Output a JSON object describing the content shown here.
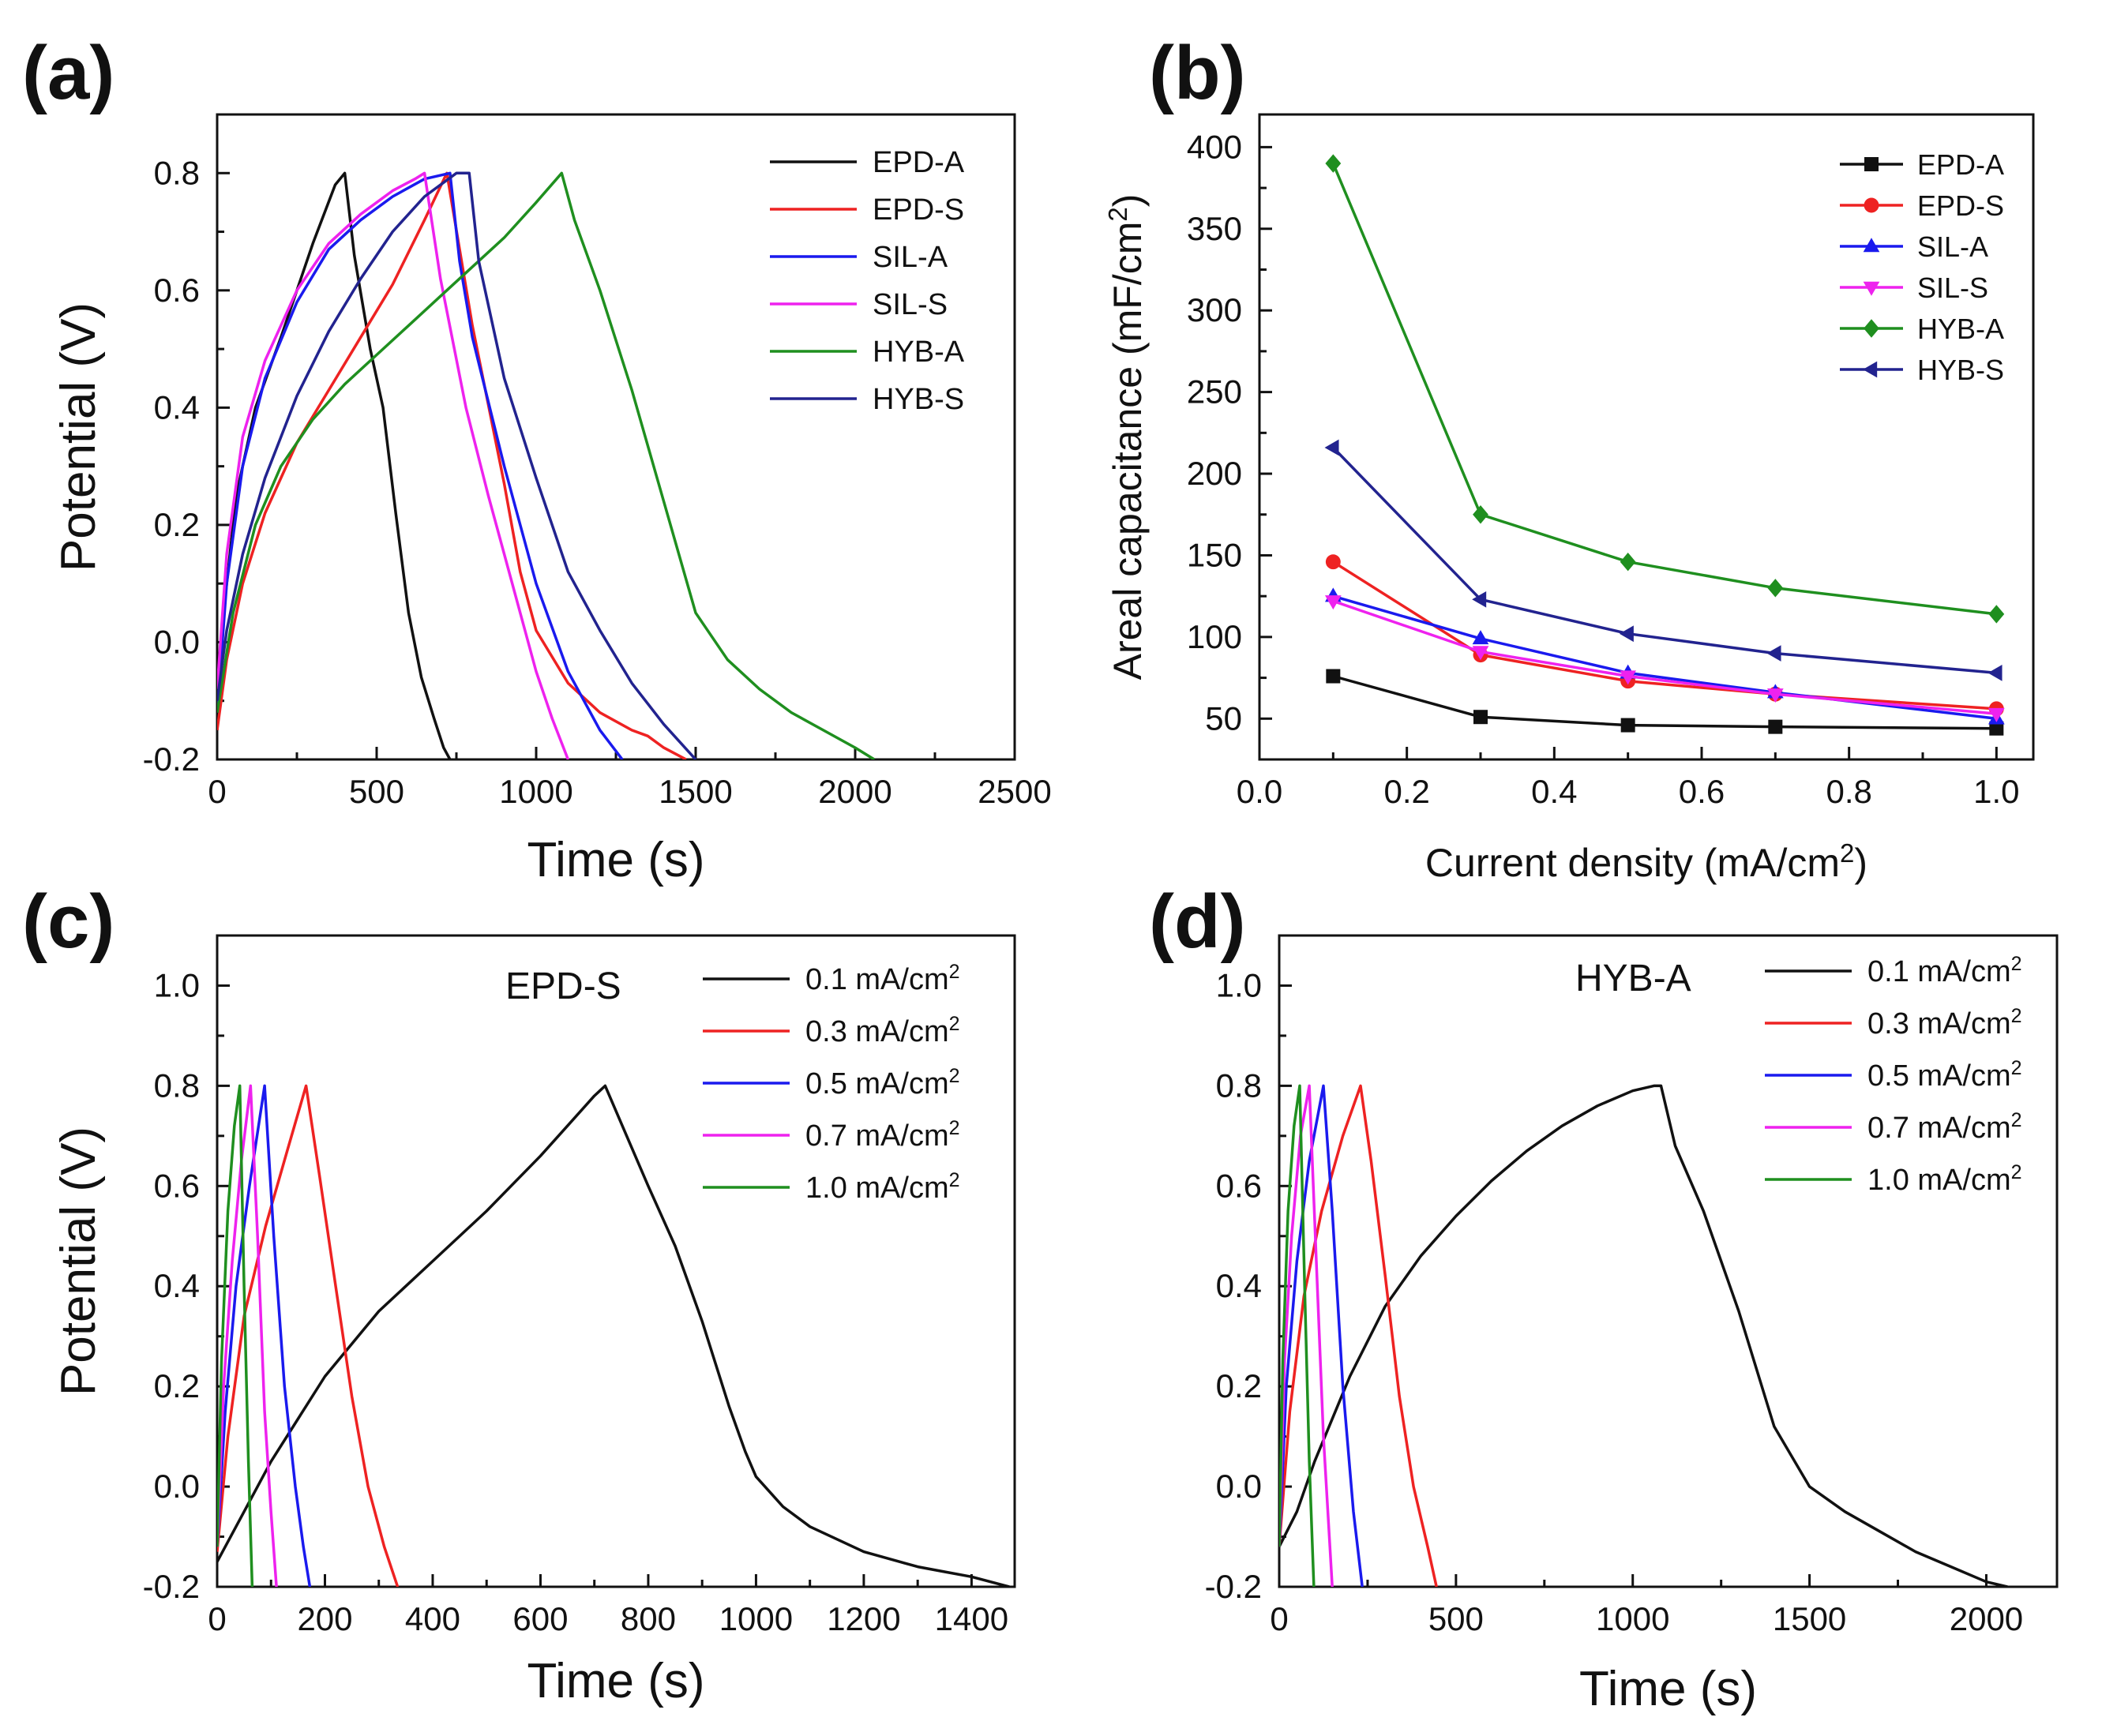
{
  "figure": {
    "panels": [
      "(a)",
      "(b)",
      "(c)",
      "(d)"
    ]
  },
  "colors": {
    "black": "#111111",
    "red": "#ee2222",
    "blue": "#1a1aee",
    "magenta": "#ee22ee",
    "green": "#1f8f1f",
    "navy": "#22238f"
  },
  "chart_data": [
    {
      "panel": "(a)",
      "type": "line",
      "title": "",
      "xlabel": "Time (s)",
      "ylabel": "Potential (V)",
      "xlim": [
        0,
        2500
      ],
      "ylim": [
        -0.2,
        0.9
      ],
      "xticks": [
        0,
        500,
        1000,
        1500,
        2000,
        2500
      ],
      "xtick_labels": [
        "0",
        "500",
        "1000",
        "1500",
        "2000",
        "2500"
      ],
      "yticks": [
        -0.2,
        0.0,
        0.2,
        0.4,
        0.6,
        0.8
      ],
      "ytick_labels": [
        "-0.2",
        "0.0",
        "0.2",
        "0.4",
        "0.6",
        "0.8"
      ],
      "legend": "top-right",
      "series": [
        {
          "name": "EPD-A",
          "color": "#111111",
          "x": [
            0,
            20,
            60,
            120,
            200,
            300,
            370,
            400,
            430,
            480,
            520,
            560,
            600,
            640,
            680,
            710,
            730
          ],
          "y": [
            -0.15,
            0.05,
            0.25,
            0.4,
            0.52,
            0.68,
            0.78,
            0.8,
            0.66,
            0.5,
            0.4,
            0.22,
            0.05,
            -0.06,
            -0.13,
            -0.18,
            -0.2
          ]
        },
        {
          "name": "EPD-S",
          "color": "#ee2222",
          "x": [
            0,
            30,
            80,
            150,
            250,
            350,
            450,
            550,
            650,
            720,
            800,
            900,
            950,
            1000,
            1100,
            1200,
            1300,
            1350,
            1400,
            1470
          ],
          "y": [
            -0.15,
            -0.03,
            0.1,
            0.22,
            0.34,
            0.43,
            0.52,
            0.61,
            0.72,
            0.8,
            0.54,
            0.27,
            0.12,
            0.02,
            -0.07,
            -0.12,
            -0.15,
            -0.16,
            -0.18,
            -0.2
          ]
        },
        {
          "name": "SIL-A",
          "color": "#1a1aee",
          "x": [
            0,
            30,
            80,
            150,
            250,
            350,
            450,
            550,
            650,
            730,
            760,
            800,
            900,
            1000,
            1100,
            1200,
            1270
          ],
          "y": [
            -0.12,
            0.1,
            0.3,
            0.45,
            0.58,
            0.67,
            0.72,
            0.76,
            0.79,
            0.8,
            0.65,
            0.52,
            0.3,
            0.1,
            -0.05,
            -0.15,
            -0.2
          ]
        },
        {
          "name": "SIL-S",
          "color": "#ee22ee",
          "x": [
            0,
            30,
            80,
            150,
            250,
            350,
            450,
            550,
            620,
            650,
            700,
            780,
            850,
            900,
            950,
            1000,
            1050,
            1100
          ],
          "y": [
            -0.08,
            0.15,
            0.35,
            0.48,
            0.6,
            0.68,
            0.73,
            0.77,
            0.79,
            0.8,
            0.62,
            0.4,
            0.25,
            0.15,
            0.05,
            -0.05,
            -0.13,
            -0.2
          ]
        },
        {
          "name": "HYB-A",
          "color": "#1f8f1f",
          "x": [
            0,
            50,
            120,
            200,
            300,
            400,
            500,
            600,
            700,
            800,
            900,
            1000,
            1080,
            1120,
            1200,
            1300,
            1400,
            1500,
            1600,
            1700,
            1800,
            1900,
            2000,
            2060
          ],
          "y": [
            -0.12,
            0.05,
            0.2,
            0.3,
            0.38,
            0.44,
            0.49,
            0.54,
            0.59,
            0.64,
            0.69,
            0.75,
            0.8,
            0.72,
            0.6,
            0.43,
            0.24,
            0.05,
            -0.03,
            -0.08,
            -0.12,
            -0.15,
            -0.18,
            -0.2
          ]
        },
        {
          "name": "HYB-S",
          "color": "#22238f",
          "x": [
            0,
            30,
            80,
            150,
            250,
            350,
            450,
            550,
            650,
            750,
            790,
            820,
            900,
            1000,
            1100,
            1200,
            1300,
            1400,
            1500
          ],
          "y": [
            -0.1,
            0.02,
            0.15,
            0.28,
            0.42,
            0.53,
            0.62,
            0.7,
            0.76,
            0.8,
            0.8,
            0.65,
            0.45,
            0.28,
            0.12,
            0.02,
            -0.07,
            -0.14,
            -0.2
          ]
        }
      ]
    },
    {
      "panel": "(b)",
      "type": "line",
      "title": "",
      "xlabel": "Current density (mA/cm²)",
      "ylabel": "Areal capacitance (mF/cm²)",
      "xlim": [
        0.0,
        1.05
      ],
      "ylim": [
        25,
        420
      ],
      "xticks": [
        0.0,
        0.2,
        0.4,
        0.6,
        0.8,
        1.0
      ],
      "xtick_labels": [
        "0.0",
        "0.2",
        "0.4",
        "0.6",
        "0.8",
        "1.0"
      ],
      "yticks": [
        50,
        100,
        150,
        200,
        250,
        300,
        350,
        400
      ],
      "ytick_labels": [
        "50",
        "100",
        "150",
        "200",
        "250",
        "300",
        "350",
        "400"
      ],
      "legend": "top-right",
      "x": [
        0.1,
        0.3,
        0.5,
        0.7,
        1.0
      ],
      "series": [
        {
          "name": "EPD-A",
          "color": "#111111",
          "marker": "square",
          "values": [
            76,
            51,
            46,
            45,
            44
          ]
        },
        {
          "name": "EPD-S",
          "color": "#ee2222",
          "marker": "circle",
          "values": [
            146,
            89,
            73,
            65,
            56
          ]
        },
        {
          "name": "SIL-A",
          "color": "#1a1aee",
          "marker": "triangle-up",
          "values": [
            125,
            99,
            78,
            66,
            50
          ]
        },
        {
          "name": "SIL-S",
          "color": "#ee22ee",
          "marker": "triangle-down",
          "values": [
            122,
            91,
            76,
            65,
            53
          ]
        },
        {
          "name": "HYB-A",
          "color": "#1f8f1f",
          "marker": "diamond",
          "values": [
            390,
            175,
            146,
            130,
            114
          ]
        },
        {
          "name": "HYB-S",
          "color": "#22238f",
          "marker": "triangle-left",
          "values": [
            216,
            123,
            102,
            90,
            78
          ]
        }
      ]
    },
    {
      "panel": "(c)",
      "type": "line",
      "title": "EPD-S",
      "xlabel": "Time (s)",
      "ylabel": "Potential (V)",
      "xlim": [
        0,
        1480
      ],
      "ylim": [
        -0.2,
        1.1
      ],
      "xticks": [
        0,
        200,
        400,
        600,
        800,
        1000,
        1200,
        1400
      ],
      "xtick_labels": [
        "0",
        "200",
        "400",
        "600",
        "800",
        "1000",
        "1200",
        "1400"
      ],
      "yticks": [
        -0.2,
        0.0,
        0.2,
        0.4,
        0.6,
        0.8,
        1.0
      ],
      "ytick_labels": [
        "-0.2",
        "0.0",
        "0.2",
        "0.4",
        "0.6",
        "0.8",
        "1.0"
      ],
      "legend": "top-right",
      "series": [
        {
          "name": "0.1 mA/cm²",
          "color": "#111111",
          "x": [
            0,
            50,
            100,
            200,
            300,
            400,
            500,
            600,
            650,
            700,
            720,
            760,
            800,
            850,
            900,
            950,
            980,
            1000,
            1050,
            1100,
            1200,
            1300,
            1350,
            1400,
            1470
          ],
          "y": [
            -0.15,
            -0.05,
            0.05,
            0.22,
            0.35,
            0.45,
            0.55,
            0.66,
            0.72,
            0.78,
            0.8,
            0.7,
            0.6,
            0.48,
            0.33,
            0.16,
            0.07,
            0.02,
            -0.04,
            -0.08,
            -0.13,
            -0.16,
            -0.17,
            -0.18,
            -0.2
          ]
        },
        {
          "name": "0.3 mA/cm²",
          "color": "#ee2222",
          "x": [
            0,
            20,
            50,
            90,
            130,
            165,
            190,
            220,
            250,
            280,
            310,
            335
          ],
          "y": [
            -0.13,
            0.1,
            0.34,
            0.52,
            0.67,
            0.8,
            0.62,
            0.4,
            0.18,
            0.0,
            -0.12,
            -0.2
          ]
        },
        {
          "name": "0.5 mA/cm²",
          "color": "#1a1aee",
          "x": [
            0,
            15,
            35,
            60,
            88,
            105,
            125,
            145,
            160,
            172
          ],
          "y": [
            -0.12,
            0.15,
            0.4,
            0.6,
            0.8,
            0.5,
            0.2,
            0.0,
            -0.12,
            -0.2
          ]
        },
        {
          "name": "0.7 mA/cm²",
          "color": "#ee22ee",
          "x": [
            0,
            12,
            28,
            45,
            62,
            75,
            88,
            100,
            110
          ],
          "y": [
            -0.12,
            0.2,
            0.45,
            0.65,
            0.8,
            0.5,
            0.15,
            -0.05,
            -0.2
          ]
        },
        {
          "name": "1.0 mA/cm²",
          "color": "#1f8f1f",
          "x": [
            0,
            8,
            20,
            32,
            42,
            50,
            58,
            65
          ],
          "y": [
            -0.12,
            0.25,
            0.55,
            0.72,
            0.8,
            0.4,
            0.05,
            -0.2
          ]
        }
      ]
    },
    {
      "panel": "(d)",
      "type": "line",
      "title": "HYB-A",
      "xlabel": "Time (s)",
      "ylabel": "",
      "xlim": [
        0,
        2200
      ],
      "ylim": [
        -0.2,
        1.1
      ],
      "xticks": [
        0,
        500,
        1000,
        1500,
        2000
      ],
      "xtick_labels": [
        "0",
        "500",
        "1000",
        "1500",
        "2000"
      ],
      "yticks": [
        -0.2,
        0.0,
        0.2,
        0.4,
        0.6,
        0.8,
        1.0
      ],
      "ytick_labels": [
        "-0.2",
        "0.0",
        "0.2",
        "0.4",
        "0.6",
        "0.8",
        "1.0"
      ],
      "legend": "top-right",
      "series": [
        {
          "name": "0.1 mA/cm²",
          "color": "#111111",
          "x": [
            0,
            50,
            100,
            200,
            300,
            400,
            500,
            600,
            700,
            800,
            900,
            1000,
            1060,
            1080,
            1120,
            1200,
            1300,
            1400,
            1500,
            1600,
            1700,
            1800,
            1900,
            2000,
            2060
          ],
          "y": [
            -0.12,
            -0.05,
            0.05,
            0.22,
            0.36,
            0.46,
            0.54,
            0.61,
            0.67,
            0.72,
            0.76,
            0.79,
            0.8,
            0.8,
            0.68,
            0.55,
            0.35,
            0.12,
            0.0,
            -0.05,
            -0.09,
            -0.13,
            -0.16,
            -0.19,
            -0.2
          ]
        },
        {
          "name": "0.3 mA/cm²",
          "color": "#ee2222",
          "x": [
            0,
            30,
            70,
            120,
            180,
            230,
            260,
            300,
            340,
            380,
            420,
            445
          ],
          "y": [
            -0.12,
            0.15,
            0.38,
            0.55,
            0.7,
            0.8,
            0.65,
            0.42,
            0.18,
            0.0,
            -0.12,
            -0.2
          ]
        },
        {
          "name": "0.5 mA/cm²",
          "color": "#1a1aee",
          "x": [
            0,
            20,
            50,
            85,
            125,
            150,
            180,
            210,
            235
          ],
          "y": [
            -0.12,
            0.2,
            0.45,
            0.65,
            0.8,
            0.55,
            0.2,
            -0.05,
            -0.2
          ]
        },
        {
          "name": "0.7 mA/cm²",
          "color": "#ee22ee",
          "x": [
            0,
            15,
            35,
            60,
            85,
            105,
            125,
            150
          ],
          "y": [
            -0.12,
            0.25,
            0.5,
            0.7,
            0.8,
            0.45,
            0.1,
            -0.2
          ]
        },
        {
          "name": "1.0 mA/cm²",
          "color": "#1f8f1f",
          "x": [
            0,
            10,
            25,
            42,
            58,
            72,
            85,
            98
          ],
          "y": [
            -0.12,
            0.25,
            0.55,
            0.72,
            0.8,
            0.4,
            0.05,
            -0.2
          ]
        }
      ]
    }
  ]
}
